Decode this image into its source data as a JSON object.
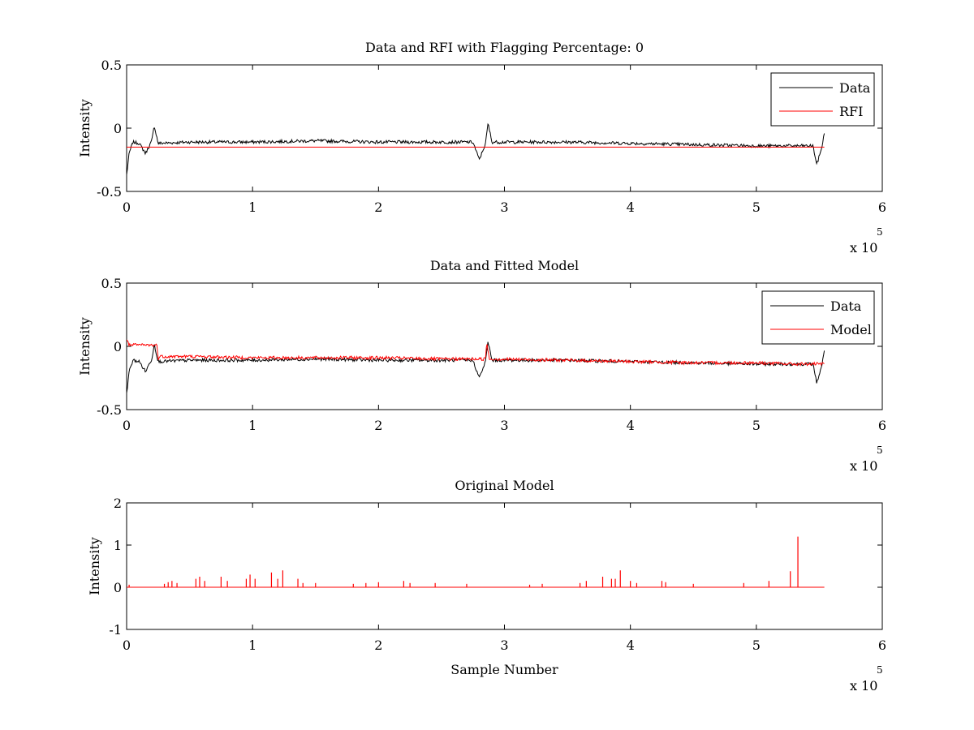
{
  "chart_data": [
    {
      "type": "line",
      "title": "Data and RFI with Flagging Percentage: 0",
      "xlabel": "",
      "ylabel": "Intensity",
      "xlim": [
        0,
        6
      ],
      "ylim": [
        -0.5,
        0.5
      ],
      "x_ticks": [
        "0",
        "1",
        "2",
        "3",
        "4",
        "5",
        "6"
      ],
      "y_ticks": [
        "0.5",
        "0",
        "-0.5"
      ],
      "x_multiplier": "x 10",
      "x_exponent": "5",
      "legend": {
        "position": "top-right",
        "entries": [
          "Data",
          "RFI"
        ]
      },
      "colors": {
        "Data": "#000000",
        "RFI": "#ff0000"
      },
      "series": [
        {
          "name": "Data",
          "color": "#000000",
          "x": [
            0.0,
            0.02,
            0.05,
            0.1,
            0.15,
            0.2,
            0.22,
            0.25,
            0.5,
            1.0,
            1.5,
            2.0,
            2.5,
            2.75,
            2.8,
            2.85,
            2.87,
            2.9,
            3.5,
            4.0,
            4.5,
            5.0,
            5.3,
            5.45,
            5.48,
            5.52,
            5.54
          ],
          "y": [
            -0.37,
            -0.2,
            -0.11,
            -0.12,
            -0.2,
            -0.1,
            0.02,
            -0.12,
            -0.11,
            -0.11,
            -0.1,
            -0.11,
            -0.11,
            -0.11,
            -0.25,
            -0.12,
            0.04,
            -0.11,
            -0.11,
            -0.12,
            -0.13,
            -0.14,
            -0.14,
            -0.14,
            -0.29,
            -0.15,
            -0.04
          ]
        },
        {
          "name": "RFI",
          "color": "#ff0000",
          "x": [
            0.0,
            5.54
          ],
          "y": [
            -0.15,
            -0.15
          ]
        }
      ]
    },
    {
      "type": "line",
      "title": "Data and Fitted Model",
      "xlabel": "",
      "ylabel": "Intensity",
      "xlim": [
        0,
        6
      ],
      "ylim": [
        -0.5,
        0.5
      ],
      "x_ticks": [
        "0",
        "1",
        "2",
        "3",
        "4",
        "5",
        "6"
      ],
      "y_ticks": [
        "0.5",
        "0",
        "-0.5"
      ],
      "x_multiplier": "x 10",
      "x_exponent": "5",
      "legend": {
        "position": "top-right",
        "entries": [
          "Data",
          "Model"
        ]
      },
      "colors": {
        "Data": "#000000",
        "Model": "#ff0000"
      },
      "series": [
        {
          "name": "Data",
          "color": "#000000",
          "x": [
            0.0,
            0.02,
            0.05,
            0.1,
            0.15,
            0.2,
            0.22,
            0.25,
            0.5,
            1.0,
            1.5,
            2.0,
            2.5,
            2.75,
            2.8,
            2.85,
            2.87,
            2.9,
            3.5,
            4.0,
            4.5,
            5.0,
            5.3,
            5.45,
            5.48,
            5.52,
            5.54
          ],
          "y": [
            -0.37,
            -0.2,
            -0.11,
            -0.12,
            -0.2,
            -0.1,
            0.02,
            -0.12,
            -0.11,
            -0.11,
            -0.1,
            -0.11,
            -0.11,
            -0.11,
            -0.25,
            -0.12,
            0.04,
            -0.11,
            -0.11,
            -0.12,
            -0.13,
            -0.14,
            -0.14,
            -0.14,
            -0.29,
            -0.15,
            -0.04
          ]
        },
        {
          "name": "Model",
          "color": "#ff0000",
          "x": [
            0.0,
            0.01,
            0.02,
            0.24,
            0.25,
            0.26,
            0.5,
            1.0,
            1.5,
            2.0,
            2.5,
            2.85,
            2.86,
            2.88,
            2.9,
            3.5,
            4.0,
            4.5,
            5.0,
            5.3,
            5.54
          ],
          "y": [
            0.05,
            0.05,
            0.01,
            0.01,
            -0.1,
            -0.08,
            -0.08,
            -0.09,
            -0.09,
            -0.09,
            -0.1,
            -0.1,
            0.04,
            -0.1,
            -0.1,
            -0.11,
            -0.12,
            -0.13,
            -0.13,
            -0.14,
            -0.14
          ]
        }
      ]
    },
    {
      "type": "line",
      "title": "Original Model",
      "xlabel": "Sample Number",
      "ylabel": "Intensity",
      "xlim": [
        0,
        6
      ],
      "ylim": [
        -1,
        2
      ],
      "x_ticks": [
        "0",
        "1",
        "2",
        "3",
        "4",
        "5",
        "6"
      ],
      "y_ticks": [
        "2",
        "1",
        "0",
        "-1"
      ],
      "x_multiplier": "x 10",
      "x_exponent": "5",
      "baseline": {
        "x": [
          0,
          5.54
        ],
        "y": 0
      },
      "series": [
        {
          "name": "",
          "color": "#ff0000",
          "spikes_x": [
            0.02,
            0.3,
            0.33,
            0.36,
            0.4,
            0.55,
            0.58,
            0.62,
            0.75,
            0.8,
            0.95,
            0.98,
            1.02,
            1.15,
            1.2,
            1.24,
            1.36,
            1.4,
            1.5,
            1.8,
            1.9,
            2.0,
            2.2,
            2.25,
            2.45,
            2.7,
            3.2,
            3.3,
            3.6,
            3.65,
            3.78,
            3.85,
            3.88,
            3.92,
            4.0,
            4.05,
            4.25,
            4.28,
            4.5,
            4.9,
            5.1,
            5.27,
            5.33
          ],
          "spikes_y": [
            0.06,
            0.08,
            0.12,
            0.15,
            0.1,
            0.2,
            0.25,
            0.15,
            0.25,
            0.15,
            0.2,
            0.3,
            0.2,
            0.35,
            0.2,
            0.4,
            0.2,
            0.1,
            0.1,
            0.08,
            0.1,
            0.12,
            0.15,
            0.1,
            0.1,
            0.08,
            0.06,
            0.08,
            0.1,
            0.15,
            0.25,
            0.2,
            0.2,
            0.4,
            0.15,
            0.1,
            0.15,
            0.12,
            0.08,
            0.1,
            0.15,
            0.38,
            1.2
          ]
        }
      ]
    }
  ]
}
